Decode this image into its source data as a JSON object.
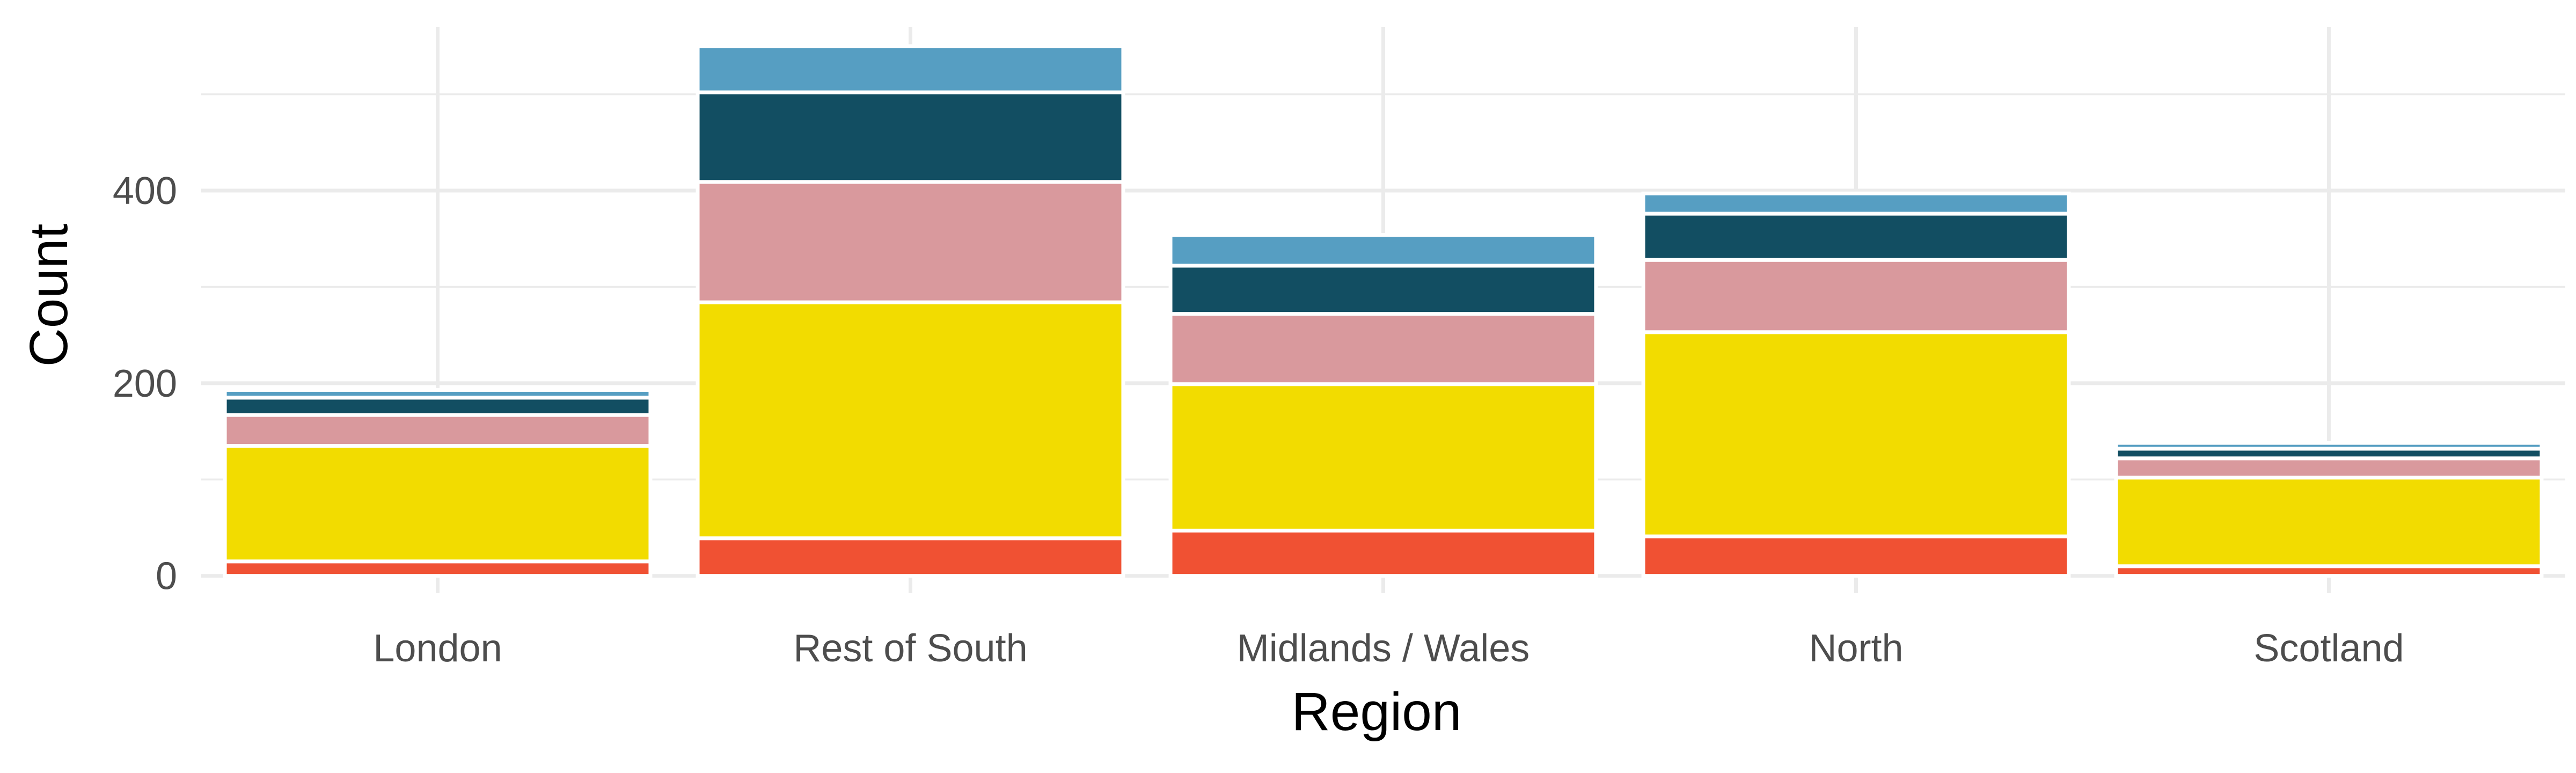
{
  "chart_data": {
    "type": "bar",
    "stacked": true,
    "categories": [
      "London",
      "Rest of South",
      "Midlands / Wales",
      "North",
      "Scotland"
    ],
    "series": [
      {
        "color": "#f05133",
        "values": [
          15,
          39,
          47,
          41,
          10
        ]
      },
      {
        "color": "#f2dc00",
        "values": [
          120,
          245,
          152,
          212,
          92
        ]
      },
      {
        "color": "#d9999d",
        "values": [
          32,
          125,
          73,
          75,
          20
        ]
      },
      {
        "color": "#124e62",
        "values": [
          18,
          93,
          50,
          48,
          10
        ]
      },
      {
        "color": "#569ec2",
        "values": [
          8,
          48,
          32,
          21,
          6
        ]
      }
    ],
    "xlabel": "Region",
    "ylabel": "Count",
    "yticks": [
      0,
      200,
      400
    ],
    "ylim": [
      -18,
      570
    ],
    "grid": true,
    "legend": "none"
  }
}
